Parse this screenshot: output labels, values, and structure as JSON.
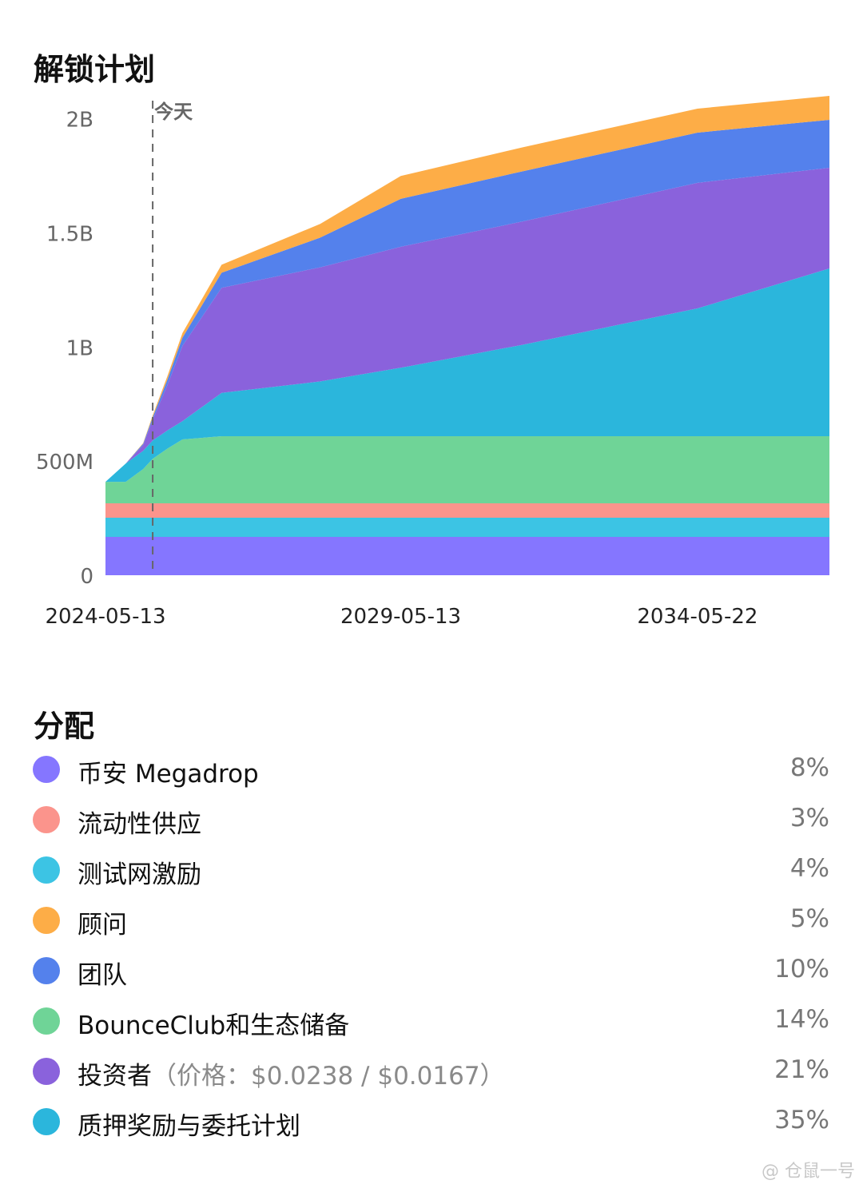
{
  "unlock_title": "解锁计划",
  "allocation_title": "分配",
  "chart_data": {
    "type": "area",
    "stacked": true,
    "today_label": "今天",
    "today_x": "2025-03-01",
    "y_ticks": [
      "0",
      "500M",
      "1B",
      "1.5B",
      "2B"
    ],
    "x_ticks": [
      "2024-05-13",
      "2029-05-13",
      "2034-05-22"
    ],
    "ylim": [
      0,
      2100000000
    ],
    "xlim": [
      "2024-05-13",
      "2036-08-15"
    ],
    "x": [
      "2024-05-13",
      "2024-09-15",
      "2025-01-01",
      "2025-03-01",
      "2025-06-01",
      "2025-09-01",
      "2026-05-01",
      "2028-01-01",
      "2029-05-13",
      "2031-06-01",
      "2034-05-22",
      "2036-08-15"
    ],
    "series": [
      {
        "name": "币安 Megadrop",
        "color": "#8576ff",
        "values": [
          168000000,
          168000000,
          168000000,
          168000000,
          168000000,
          168000000,
          168000000,
          168000000,
          168000000,
          168000000,
          168000000,
          168000000
        ]
      },
      {
        "name": "测试网激励",
        "color": "#3cc4e4",
        "values": [
          84000000,
          84000000,
          84000000,
          84000000,
          84000000,
          84000000,
          84000000,
          84000000,
          84000000,
          84000000,
          84000000,
          84000000
        ]
      },
      {
        "name": "流动性供应",
        "color": "#fb948c",
        "values": [
          63000000,
          63000000,
          63000000,
          63000000,
          63000000,
          63000000,
          63000000,
          63000000,
          63000000,
          63000000,
          63000000,
          63000000
        ]
      },
      {
        "name": "BounceClub和生态储备",
        "color": "#6fd497",
        "values": [
          94000000,
          94000000,
          150000000,
          195000000,
          240000000,
          280000000,
          294000000,
          294000000,
          294000000,
          294000000,
          294000000,
          294000000
        ]
      },
      {
        "name": "质押奖励与委托计划",
        "color": "#2bb6dc",
        "values": [
          0,
          80000000,
          80000000,
          80000000,
          80000000,
          80000000,
          190000000,
          240000000,
          300000000,
          400000000,
          560000000,
          735000000
        ]
      },
      {
        "name": "投资者",
        "color": "#8a62dc",
        "values": [
          0,
          0,
          25000000,
          90000000,
          200000000,
          330000000,
          460000000,
          500000000,
          530000000,
          540000000,
          550000000,
          441000000
        ]
      },
      {
        "name": "团队",
        "color": "#5481ec",
        "values": [
          0,
          0,
          6000000,
          12000000,
          24000000,
          36000000,
          66000000,
          130000000,
          210000000,
          220000000,
          220000000,
          210000000
        ]
      },
      {
        "name": "顾问",
        "color": "#fdad47",
        "values": [
          0,
          0,
          3000000,
          8000000,
          15000000,
          20000000,
          35000000,
          60000000,
          100000000,
          105000000,
          105000000,
          105000000
        ]
      }
    ]
  },
  "allocation": [
    {
      "name": "币安 Megadrop",
      "note": "",
      "pct": "8%",
      "color": "#8576ff"
    },
    {
      "name": "流动性供应",
      "note": "",
      "pct": "3%",
      "color": "#fb948c"
    },
    {
      "name": "测试网激励",
      "note": "",
      "pct": "4%",
      "color": "#3cc4e4"
    },
    {
      "name": "顾问",
      "note": "",
      "pct": "5%",
      "color": "#fdad47"
    },
    {
      "name": "团队",
      "note": "",
      "pct": "10%",
      "color": "#5481ec"
    },
    {
      "name": "BounceClub和生态储备",
      "note": "",
      "pct": "14%",
      "color": "#6fd497"
    },
    {
      "name": "投资者",
      "note": "（价格：$0.0238 / $0.0167）",
      "pct": "21%",
      "color": "#8a62dc"
    },
    {
      "name": "质押奖励与委托计划",
      "note": "",
      "pct": "35%",
      "color": "#2bb6dc"
    }
  ],
  "watermark": "@ 仓鼠一号"
}
